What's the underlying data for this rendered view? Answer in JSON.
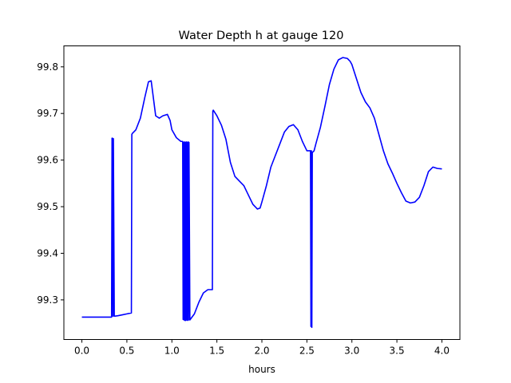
{
  "chart_data": {
    "type": "line",
    "title": "Water Depth h at gauge 120",
    "xlabel": "hours",
    "ylabel": "",
    "xlim": [
      -0.2,
      4.2
    ],
    "ylim": [
      99.215,
      99.845
    ],
    "xticks": [
      0.0,
      0.5,
      1.0,
      1.5,
      2.0,
      2.5,
      3.0,
      3.5,
      4.0
    ],
    "xtick_labels": [
      "0.0",
      "0.5",
      "1.0",
      "1.5",
      "2.0",
      "2.5",
      "3.0",
      "3.5",
      "4.0"
    ],
    "yticks": [
      99.3,
      99.4,
      99.5,
      99.6,
      99.7,
      99.8
    ],
    "ytick_labels": [
      "99.3",
      "99.4",
      "99.5",
      "99.6",
      "99.7",
      "99.8"
    ],
    "grid": false,
    "legend": "none",
    "series": [
      {
        "color": "#0000ff",
        "x": [
          0.0,
          0.33,
          0.335,
          0.34,
          0.345,
          0.35,
          0.36,
          0.4,
          0.45,
          0.5,
          0.55,
          0.555,
          0.56,
          0.6,
          0.65,
          0.7,
          0.74,
          0.77,
          0.79,
          0.82,
          0.86,
          0.9,
          0.95,
          0.98,
          1.0,
          1.05,
          1.1,
          1.12,
          1.125,
          1.13,
          1.135,
          1.14,
          1.145,
          1.15,
          1.155,
          1.16,
          1.165,
          1.17,
          1.175,
          1.18,
          1.185,
          1.19,
          1.2,
          1.25,
          1.3,
          1.35,
          1.4,
          1.45,
          1.455,
          1.46,
          1.5,
          1.55,
          1.6,
          1.65,
          1.7,
          1.75,
          1.8,
          1.85,
          1.9,
          1.95,
          1.98,
          2.0,
          2.05,
          2.1,
          2.15,
          2.2,
          2.25,
          2.3,
          2.35,
          2.4,
          2.45,
          2.5,
          2.54,
          2.545,
          2.55,
          2.555,
          2.56,
          2.565,
          2.58,
          2.6,
          2.65,
          2.7,
          2.75,
          2.8,
          2.85,
          2.9,
          2.95,
          2.98,
          3.0,
          3.05,
          3.1,
          3.15,
          3.2,
          3.25,
          3.3,
          3.35,
          3.4,
          3.45,
          3.5,
          3.55,
          3.6,
          3.65,
          3.7,
          3.75,
          3.8,
          3.85,
          3.9,
          3.95,
          4.0
        ],
        "y": [
          99.263,
          99.263,
          99.647,
          99.647,
          99.265,
          99.646,
          99.265,
          99.266,
          99.268,
          99.27,
          99.272,
          99.655,
          99.657,
          99.665,
          99.69,
          99.735,
          99.768,
          99.77,
          99.74,
          99.695,
          99.69,
          99.695,
          99.698,
          99.685,
          99.665,
          99.648,
          99.64,
          99.64,
          99.258,
          99.638,
          99.257,
          99.639,
          99.256,
          99.638,
          99.256,
          99.639,
          99.257,
          99.638,
          99.256,
          99.639,
          99.257,
          99.638,
          99.257,
          99.27,
          99.295,
          99.315,
          99.322,
          99.322,
          99.705,
          99.707,
          99.695,
          99.675,
          99.645,
          99.595,
          99.565,
          99.555,
          99.545,
          99.525,
          99.505,
          99.495,
          99.497,
          99.51,
          99.545,
          99.585,
          99.61,
          99.635,
          99.66,
          99.672,
          99.676,
          99.665,
          99.64,
          99.62,
          99.62,
          99.243,
          99.62,
          99.241,
          99.617,
          99.617,
          99.62,
          99.635,
          99.67,
          99.715,
          99.762,
          99.795,
          99.815,
          99.82,
          99.818,
          99.812,
          99.805,
          99.775,
          99.745,
          99.725,
          99.712,
          99.69,
          99.655,
          99.62,
          99.592,
          99.572,
          99.55,
          99.53,
          99.512,
          99.508,
          99.51,
          99.52,
          99.545,
          99.575,
          99.585,
          99.582,
          99.581
        ]
      }
    ]
  }
}
